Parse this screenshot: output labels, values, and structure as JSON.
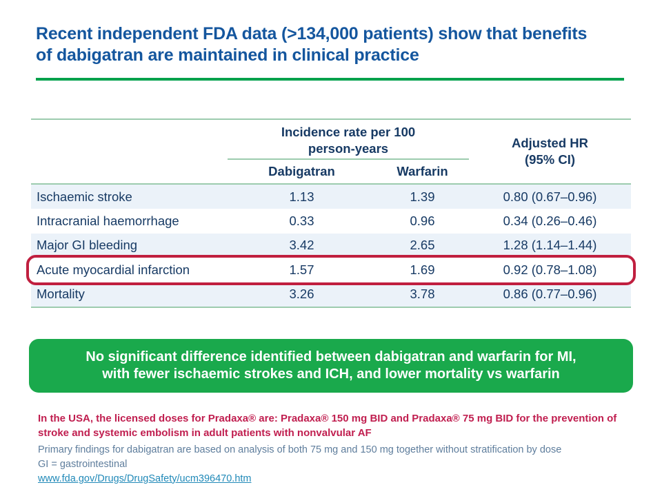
{
  "slide": {
    "title": "Recent independent FDA data (>134,000 patients) show that benefits of dabigatran are maintained in clinical practice"
  },
  "table": {
    "col_group_header_line1": "Incidence rate per 100",
    "col_group_header_line2": "person-years",
    "columns": {
      "treatment1": "Dabigatran",
      "treatment2": "Warfarin",
      "hr_line1": "Adjusted HR",
      "hr_line2": "(95% CI)"
    },
    "rows": [
      {
        "outcome": "Ischaemic stroke",
        "dabigatran": "1.13",
        "warfarin": "1.39",
        "adjusted_hr": "0.80 (0.67–0.96)",
        "highlighted": false
      },
      {
        "outcome": "Intracranial haemorrhage",
        "dabigatran": "0.33",
        "warfarin": "0.96",
        "adjusted_hr": "0.34 (0.26–0.46)",
        "highlighted": false
      },
      {
        "outcome": "Major GI bleeding",
        "dabigatran": "3.42",
        "warfarin": "2.65",
        "adjusted_hr": "1.28 (1.14–1.44)",
        "highlighted": false
      },
      {
        "outcome": "Acute myocardial infarction",
        "dabigatran": "1.57",
        "warfarin": "1.69",
        "adjusted_hr": "0.92 (0.78–1.08)",
        "highlighted": true
      },
      {
        "outcome": "Mortality",
        "dabigatran": "3.26",
        "warfarin": "3.78",
        "adjusted_hr": "0.86 (0.77–0.96)",
        "highlighted": false
      }
    ]
  },
  "callout": {
    "line1": "No significant difference identified between dabigatran and warfarin for MI,",
    "line2": "with fewer ischaemic strokes and ICH, and lower mortality vs warfarin"
  },
  "footnotes": {
    "licensing": "In the USA, the licensed doses for Pradaxa® are: Pradaxa® 150 mg BID and Pradaxa® 75 mg BID for the prevention of stroke and systemic embolism in adult patients with nonvalvular AF",
    "analysis_note": "Primary findings for dabigatran are based on analysis of both 75 mg and 150 mg together without stratification by dose",
    "abbreviation": "GI = gastrointestinal",
    "source_link": "www.fda.gov/Drugs/DrugSafety/ucm396470.htm"
  },
  "colors": {
    "title_blue": "#14569E",
    "table_navy": "#173A64",
    "title_rule_green": "#00A14B",
    "table_rule_green": "#9CCBAE",
    "row_band_blue": "#EBF2F9",
    "callout_green": "#1AA94C",
    "highlight_red": "#C01F3F",
    "footnote_crimson": "#C01E4F",
    "footnote_gray_blue": "#5E7D9C",
    "link_teal": "#2089B8"
  }
}
